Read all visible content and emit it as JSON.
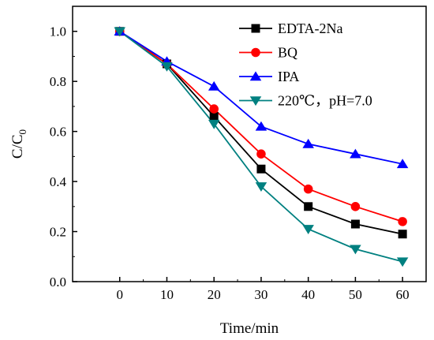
{
  "chart_data": {
    "type": "line",
    "title": "",
    "xlabel": "Time/min",
    "ylabel": "C/C",
    "ylabel_subscript": "0",
    "x": [
      0,
      10,
      20,
      30,
      40,
      50,
      60
    ],
    "xlim": [
      -10,
      65
    ],
    "ylim": [
      0.0,
      1.1
    ],
    "x_ticks": [
      0,
      10,
      20,
      30,
      40,
      50,
      60
    ],
    "x_tick_labels": [
      "0",
      "10",
      "20",
      "30",
      "40",
      "50",
      "60"
    ],
    "y_ticks": [
      0.0,
      0.2,
      0.4,
      0.6,
      0.8,
      1.0
    ],
    "y_tick_labels": [
      "0.0",
      "0.2",
      "0.4",
      "0.6",
      "0.8",
      "1.0"
    ],
    "grid": false,
    "legend_position": "top-right",
    "series": [
      {
        "name": "EDTA-2Na",
        "color": "#000000",
        "marker": "square",
        "values": [
          1.0,
          0.87,
          0.66,
          0.45,
          0.3,
          0.23,
          0.19
        ]
      },
      {
        "name": "BQ",
        "color": "#ff0000",
        "marker": "circle",
        "values": [
          1.0,
          0.87,
          0.69,
          0.51,
          0.37,
          0.3,
          0.24
        ]
      },
      {
        "name": "IPA",
        "color": "#0000ff",
        "marker": "triangle-up",
        "values": [
          1.0,
          0.88,
          0.78,
          0.62,
          0.55,
          0.51,
          0.47
        ]
      },
      {
        "name": "220℃，pH=7.0",
        "color": "#008080",
        "marker": "triangle-down",
        "values": [
          1.0,
          0.86,
          0.63,
          0.38,
          0.21,
          0.13,
          0.08
        ]
      }
    ]
  }
}
